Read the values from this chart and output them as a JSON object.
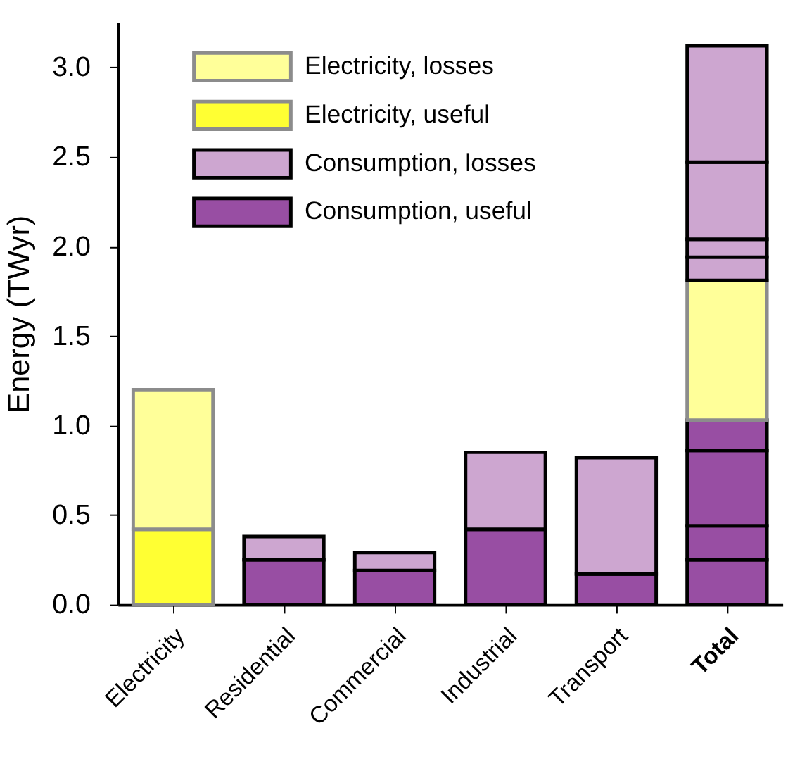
{
  "chart_data": {
    "type": "bar",
    "stacked": true,
    "ylabel": "Energy (TWyr)",
    "categories": [
      "Electricity",
      "Residential",
      "Commercial",
      "Industrial",
      "Transport",
      "Total"
    ],
    "ylim": [
      0,
      3.25
    ],
    "yticks": [
      {
        "value": 0,
        "label": "0.0"
      },
      0.5,
      {
        "value": 1,
        "label": "1.0"
      },
      1.5,
      {
        "value": 2,
        "label": "2.0"
      },
      2.5,
      {
        "value": 3,
        "label": "3.0"
      }
    ],
    "grid": false,
    "legend": "top left",
    "series": [
      {
        "name": "Consumption, useful",
        "color": "#984ea3",
        "values": [
          null,
          0.25,
          0.19,
          0.42,
          0.17,
          0.25
        ]
      },
      {
        "color": "#984ea3",
        "values": [
          null,
          null,
          null,
          null,
          null,
          0.19
        ]
      },
      {
        "color": "#984ea3",
        "values": [
          null,
          null,
          null,
          null,
          null,
          0.42
        ]
      },
      {
        "color": "#984ea3",
        "values": [
          null,
          null,
          null,
          null,
          null,
          0.17
        ]
      },
      {
        "name": "Consumption, losses",
        "color": "#cda6d0",
        "values": [
          null,
          0.13,
          0.1,
          0.43,
          0.65,
          null
        ]
      },
      {
        "name": "Electricity, useful",
        "color": "#ffff33",
        "values": [
          0.42,
          null,
          null,
          null,
          null,
          null
        ]
      },
      {
        "name": "Electricity, losses",
        "color": "#ffff99",
        "values": [
          0.78,
          null,
          null,
          null,
          null,
          0.78
        ]
      },
      {
        "color": "#cda6d0",
        "values": [
          null,
          null,
          null,
          null,
          null,
          0.13
        ]
      },
      {
        "color": "#cda6d0",
        "values": [
          null,
          null,
          null,
          null,
          null,
          0.1
        ]
      },
      {
        "color": "#cda6d0",
        "values": [
          null,
          null,
          null,
          null,
          null,
          0.43
        ]
      },
      {
        "color": "#cda6d0",
        "values": [
          null,
          null,
          null,
          null,
          null,
          0.65
        ]
      }
    ]
  }
}
